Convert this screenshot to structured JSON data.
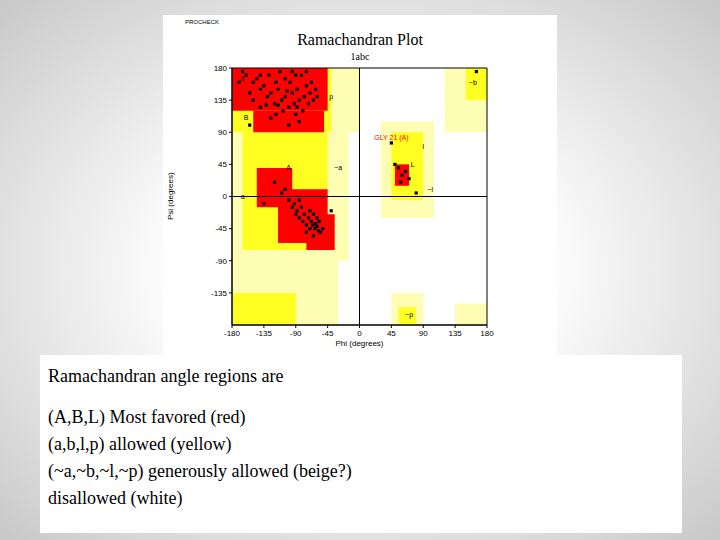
{
  "chart_data": {
    "type": "scatter",
    "corner_text": "PROCHECK",
    "title": "Ramachandran Plot",
    "subtitle": "1abc",
    "x_label": "Phi (degrees)",
    "y_label": "Psi (degrees)",
    "xlim": [
      -180,
      180
    ],
    "ylim": [
      -180,
      180
    ],
    "xticks": [
      -180,
      -135,
      -90,
      -45,
      0,
      45,
      90,
      135,
      180
    ],
    "yticks": [
      -135,
      -90,
      -45,
      0,
      45,
      90,
      135,
      180
    ],
    "ref_lines_x": [
      0
    ],
    "ref_lines_y": [
      0
    ],
    "marker": "square",
    "color": "#000000",
    "x": [
      -160,
      -150,
      -145,
      -140,
      -135,
      -130,
      -125,
      -120,
      -118,
      -115,
      -110,
      -108,
      -105,
      -100,
      -98,
      -95,
      -92,
      -90,
      -88,
      -85,
      -82,
      -80,
      -78,
      -75,
      -72,
      -70,
      -68,
      -65,
      -62,
      -60,
      -140,
      -150,
      -155,
      -165,
      -170,
      -128,
      -112,
      -95,
      -125,
      -100,
      -85,
      -140,
      -132,
      -118,
      -105,
      -90,
      -75,
      -115,
      -102,
      -88,
      -100,
      -95,
      -92,
      -90,
      -88,
      -85,
      -82,
      -80,
      -78,
      -75,
      -72,
      -70,
      -68,
      -66,
      -65,
      -63,
      -62,
      -60,
      -58,
      -57,
      -55,
      -110,
      -105,
      -120,
      -85,
      -70,
      -60,
      -52,
      -65,
      -75,
      55,
      60,
      65,
      58,
      70,
      50,
      45,
      -155,
      -135,
      -40,
      80,
      165
    ],
    "values": [
      170,
      160,
      165,
      150,
      155,
      140,
      145,
      130,
      160,
      150,
      135,
      120,
      140,
      125,
      160,
      145,
      130,
      115,
      150,
      135,
      170,
      120,
      140,
      155,
      130,
      145,
      160,
      135,
      150,
      140,
      125,
      135,
      145,
      175,
      160,
      170,
      175,
      175,
      110,
      100,
      105,
      170,
      128,
      115,
      165,
      170,
      175,
      128,
      148,
      125,
      -5,
      -15,
      -10,
      -25,
      -20,
      -30,
      -15,
      -35,
      -25,
      -40,
      -30,
      -45,
      -35,
      -40,
      -25,
      -45,
      -38,
      -42,
      -48,
      -35,
      -50,
      5,
      10,
      20,
      -5,
      -20,
      -30,
      -45,
      -55,
      -50,
      40,
      30,
      35,
      20,
      25,
      45,
      75,
      100,
      -10,
      -20,
      5,
      175
    ],
    "regions": [
      {
        "name": "generously allowed",
        "color": "#fdfdb4",
        "rects": [
          [
            -180,
            0,
            90,
            180
          ],
          [
            -180,
            -30,
            -180,
            90
          ],
          [
            -45,
            -15,
            -90,
            90
          ],
          [
            30,
            105,
            -30,
            105
          ],
          [
            120,
            180,
            90,
            180
          ],
          [
            45,
            90,
            -180,
            -135
          ],
          [
            135,
            180,
            -180,
            -150
          ]
        ]
      },
      {
        "name": "allowed",
        "color": "#ffff22",
        "rects": [
          [
            -180,
            -40,
            90,
            180
          ],
          [
            -165,
            -45,
            -75,
            90
          ],
          [
            -180,
            -90,
            -180,
            -135
          ],
          [
            45,
            90,
            -5,
            90
          ],
          [
            150,
            180,
            135,
            180
          ],
          [
            55,
            80,
            -180,
            -155
          ]
        ]
      },
      {
        "name": "most favored",
        "color": "#ff0000",
        "rects": [
          [
            -180,
            -45,
            120,
            180
          ],
          [
            -150,
            -50,
            90,
            120
          ],
          [
            -145,
            -95,
            -15,
            40
          ],
          [
            -115,
            -45,
            -65,
            10
          ],
          [
            -75,
            -35,
            -75,
            -25
          ],
          [
            50,
            70,
            15,
            45
          ]
        ]
      }
    ],
    "annotations": [
      {
        "text": "GLY 21 (A)",
        "x": 45,
        "y": 82,
        "color": "#ff0000"
      },
      {
        "text": "A",
        "x": -100,
        "y": 40,
        "color": "#000000"
      },
      {
        "text": "B",
        "x": -160,
        "y": 110,
        "color": "#000000"
      },
      {
        "text": "L",
        "x": 75,
        "y": 45,
        "color": "#000000"
      },
      {
        "text": "a",
        "x": -165,
        "y": 0,
        "color": "#000000"
      },
      {
        "text": "b",
        "x": -165,
        "y": 165,
        "color": "#000000"
      },
      {
        "text": "l",
        "x": 90,
        "y": 70,
        "color": "#000000"
      },
      {
        "text": "p",
        "x": -40,
        "y": 140,
        "color": "#000000"
      },
      {
        "text": "~a",
        "x": -30,
        "y": 40,
        "color": "#000000"
      },
      {
        "text": "~b",
        "x": 160,
        "y": 160,
        "color": "#000000"
      },
      {
        "text": "~l",
        "x": 100,
        "y": 10,
        "color": "#000000"
      },
      {
        "text": "~p",
        "x": 70,
        "y": -165,
        "color": "#000000"
      }
    ]
  },
  "caption": {
    "heading": "Ramachandran angle regions are",
    "lines": [
      "(A,B,L) Most favored (red)",
      "(a,b,l,p) allowed (yellow)",
      "(~a,~b,~l,~p) generously allowed (beige?)",
      "disallowed (white)"
    ]
  }
}
